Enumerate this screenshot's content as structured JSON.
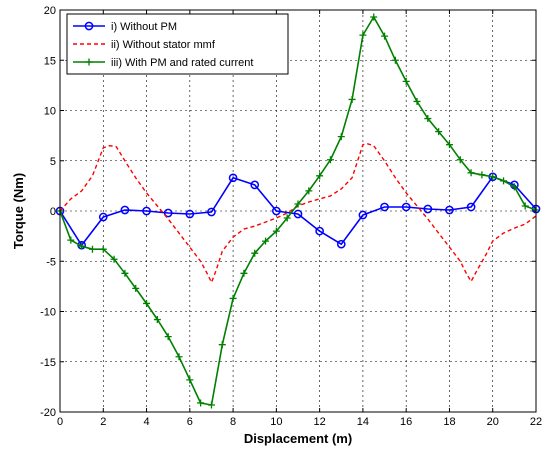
{
  "chart_data": {
    "type": "line",
    "title": "",
    "xlabel": "Displacement (m)",
    "ylabel": "Torque (Nm)",
    "xlim": [
      0,
      22
    ],
    "ylim": [
      -20,
      20
    ],
    "xticks": [
      0,
      2,
      4,
      6,
      8,
      10,
      12,
      14,
      16,
      18,
      20,
      22
    ],
    "yticks": [
      -20,
      -15,
      -10,
      -5,
      0,
      5,
      10,
      15,
      20
    ],
    "grid": true,
    "legend_position": "top-left",
    "series": [
      {
        "name": "i) Without PM",
        "color": "#0000ff",
        "line_style": "solid",
        "marker": "circle",
        "x": [
          0,
          1,
          2,
          3,
          4,
          5,
          6,
          7,
          8,
          9,
          10,
          11,
          12,
          13,
          14,
          15,
          16,
          17,
          18,
          19,
          20,
          21,
          22
        ],
        "y": [
          0,
          -3.4,
          -0.6,
          0.1,
          0.0,
          -0.2,
          -0.3,
          -0.1,
          3.3,
          2.6,
          0.0,
          -0.3,
          -2.0,
          -3.3,
          -0.4,
          0.4,
          0.4,
          0.2,
          0.1,
          0.4,
          3.4,
          2.6,
          0.2
        ]
      },
      {
        "name": "ii) Without stator mmf",
        "color": "#ff0000",
        "line_style": "dashed",
        "marker": "none",
        "x": [
          0,
          0.5,
          1,
          1.5,
          2,
          2.3,
          2.6,
          3,
          3.5,
          4,
          4.5,
          5,
          5.5,
          6,
          6.5,
          6.8,
          7,
          7.2,
          7.5,
          8,
          8.5,
          9,
          9.5,
          10,
          10.5,
          11,
          11.5,
          12,
          12.5,
          13,
          13.5,
          14,
          14.2,
          14.5,
          15,
          15.5,
          16,
          16.5,
          17,
          17.5,
          18,
          18.5,
          18.8,
          19,
          19.3,
          19.7,
          20,
          20.5,
          21,
          21.5,
          22
        ],
        "y": [
          0,
          1.2,
          2.0,
          3.5,
          6.3,
          6.5,
          6.4,
          5.0,
          3.3,
          1.8,
          0.5,
          -0.8,
          -2.2,
          -3.6,
          -5.0,
          -6.2,
          -7.1,
          -6.0,
          -4.0,
          -2.6,
          -1.8,
          -1.5,
          -1.1,
          -0.7,
          -0.2,
          0.5,
          0.9,
          1.2,
          1.5,
          2.2,
          3.3,
          6.6,
          6.7,
          6.5,
          5.0,
          3.3,
          1.8,
          0.5,
          -0.8,
          -2.2,
          -3.6,
          -5.0,
          -6.3,
          -7.0,
          -5.8,
          -4.3,
          -3.0,
          -2.2,
          -1.7,
          -1.3,
          -0.5
        ]
      },
      {
        "name": "iii) With PM and rated current",
        "color": "#008000",
        "line_style": "solid",
        "marker": "plus",
        "x": [
          0,
          0.5,
          1,
          1.5,
          2,
          2.5,
          3,
          3.5,
          4,
          4.5,
          5,
          5.5,
          6,
          6.5,
          7,
          7.5,
          8,
          8.5,
          9,
          9.5,
          10,
          10.5,
          11,
          11.5,
          12,
          12.5,
          13,
          13.5,
          14,
          14.5,
          15,
          15.5,
          16,
          16.5,
          17,
          17.5,
          18,
          18.5,
          19,
          19.5,
          20,
          20.5,
          21,
          21.5,
          22
        ],
        "y": [
          0,
          -2.9,
          -3.5,
          -3.8,
          -3.8,
          -4.8,
          -6.2,
          -7.7,
          -9.2,
          -10.8,
          -12.5,
          -14.5,
          -16.8,
          -19.1,
          -19.3,
          -13.3,
          -8.7,
          -6.2,
          -4.2,
          -3.0,
          -2.0,
          -0.7,
          0.7,
          2.0,
          3.5,
          5.1,
          7.4,
          11.1,
          17.5,
          19.3,
          17.4,
          15.0,
          12.9,
          10.9,
          9.2,
          7.9,
          6.6,
          5.1,
          3.8,
          3.6,
          3.4,
          3.0,
          2.4,
          0.5,
          0.1
        ]
      }
    ]
  }
}
